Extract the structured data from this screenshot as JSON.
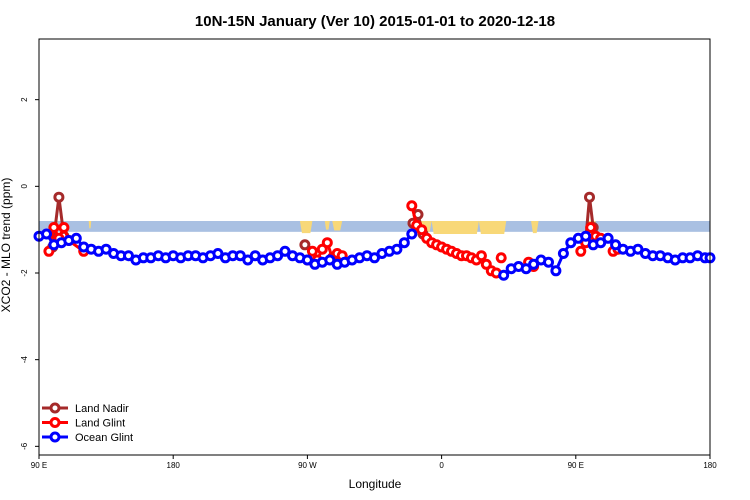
{
  "chart_data": {
    "type": "line",
    "title": "10N-15N January (Ver 10)   2015-01-01 to 2020-12-18",
    "xlabel": "Longitude",
    "ylabel": "XCO2 - MLO trend (ppm)",
    "xlim": [
      -90,
      180
    ],
    "ylim": [
      -6.2,
      3.4
    ],
    "x_ticks": [
      {
        "value": -90,
        "label": "90 E"
      },
      {
        "value": -36,
        "label": "180"
      },
      {
        "value": 18,
        "label": "90 W"
      },
      {
        "value": 72,
        "label": "0"
      },
      {
        "value": 126,
        "label": "90 E"
      },
      {
        "value": 180,
        "label": "180"
      }
    ],
    "y_ticks": [
      {
        "value": 2,
        "label": "2"
      },
      {
        "value": 0,
        "label": "0"
      },
      {
        "value": -2,
        "label": "-2"
      },
      {
        "value": -4,
        "label": "-4"
      },
      {
        "value": -6,
        "label": "-6"
      }
    ],
    "band": {
      "y_top": -0.8,
      "y_bottom": -1.05,
      "color": "#a9c0e2"
    },
    "land_patches": {
      "color": "#f8d878",
      "regions": [
        {
          "x0": -84,
          "x1": -82.5,
          "y_low": -1.05
        },
        {
          "x0": -70,
          "x1": -69,
          "y_low": -0.97
        },
        {
          "x0": 15,
          "x1": 20,
          "y_low": -1.08
        },
        {
          "x0": 25,
          "x1": 27,
          "y_low": -1.0
        },
        {
          "x0": 28,
          "x1": 32,
          "y_low": -1.02
        },
        {
          "x0": 62,
          "x1": 68,
          "y_low": -1.05
        },
        {
          "x0": 68,
          "x1": 87,
          "y_low": -1.1
        },
        {
          "x0": 87,
          "x1": 98,
          "y_low": -1.1
        },
        {
          "x0": 108,
          "x1": 111,
          "y_low": -1.08
        },
        {
          "x0": 131,
          "x1": 134,
          "y_low": -1.0
        }
      ]
    },
    "legend": {
      "position": "bottom-left",
      "entries": [
        {
          "label": "Land Nadir",
          "color": "#a52a2a"
        },
        {
          "label": "Land Glint",
          "color": "#ff0000"
        },
        {
          "label": "Ocean Glint",
          "color": "#0000ff"
        }
      ]
    },
    "series": [
      {
        "name": "Land Nadir",
        "color": "#a52a2a",
        "segments": [
          {
            "x": [
              -84.5,
              -82,
              -80
            ],
            "y": [
              -1.4,
              -0.25,
              -1.15
            ]
          },
          {
            "x": [
              17
            ],
            "y": [
              -1.35
            ]
          },
          {
            "x": [
              60.5,
              62.5,
              64.5
            ],
            "y": [
              -0.85,
              -0.65,
              -1.1
            ]
          },
          {
            "x": [
              130,
              131.5,
              133
            ],
            "y": [
              -1.25,
              -0.25,
              -0.95
            ]
          }
        ]
      },
      {
        "name": "Land Glint",
        "color": "#ff0000",
        "segments": [
          {
            "x": [
              -86,
              -84,
              -82,
              -80,
              -78,
              -72
            ],
            "y": [
              -1.5,
              -0.95,
              -1.2,
              -0.95,
              -1.25,
              -1.5
            ]
          },
          {
            "x": [
              18,
              20,
              22,
              24,
              26,
              28,
              30,
              32
            ],
            "y": [
              -1.7,
              -1.5,
              -1.7,
              -1.45,
              -1.3,
              -1.65,
              -1.55,
              -1.6
            ]
          },
          {
            "x": [
              60,
              62,
              64,
              66,
              68,
              70,
              72,
              74,
              76,
              78,
              80,
              82,
              84,
              86,
              88,
              90,
              92,
              94
            ],
            "y": [
              -0.45,
              -0.9,
              -1.0,
              -1.2,
              -1.3,
              -1.35,
              -1.4,
              -1.45,
              -1.5,
              -1.55,
              -1.6,
              -1.6,
              -1.65,
              -1.7,
              -1.6,
              -1.8,
              -1.95,
              -2.0
            ]
          },
          {
            "x": [
              96
            ],
            "y": [
              -1.65
            ]
          },
          {
            "x": [
              107,
              109
            ],
            "y": [
              -1.75,
              -1.85
            ]
          },
          {
            "x": [
              128,
              130,
              132,
              134,
              136
            ],
            "y": [
              -1.5,
              -1.3,
              -0.95,
              -1.15,
              -1.2
            ]
          },
          {
            "x": [
              141,
              143
            ],
            "y": [
              -1.5,
              -1.45
            ]
          }
        ]
      },
      {
        "name": "Ocean Glint",
        "color": "#0000ff",
        "segments": [
          {
            "x": [
              -90,
              -87,
              -84,
              -81,
              -78,
              -75,
              -72,
              -69,
              -66,
              -63,
              -60,
              -57,
              -54,
              -51,
              -48,
              -45,
              -42,
              -39,
              -36,
              -33,
              -30,
              -27,
              -24,
              -21,
              -18,
              -15,
              -12,
              -9,
              -6,
              -3,
              0,
              3,
              6,
              9,
              12,
              15,
              18,
              21,
              24,
              27,
              30,
              33,
              36,
              39,
              42,
              45,
              48,
              51,
              54,
              57,
              60
            ],
            "y": [
              -1.15,
              -1.1,
              -1.35,
              -1.3,
              -1.25,
              -1.2,
              -1.4,
              -1.45,
              -1.5,
              -1.45,
              -1.55,
              -1.6,
              -1.6,
              -1.7,
              -1.65,
              -1.65,
              -1.6,
              -1.65,
              -1.6,
              -1.65,
              -1.6,
              -1.6,
              -1.65,
              -1.6,
              -1.55,
              -1.65,
              -1.6,
              -1.6,
              -1.7,
              -1.6,
              -1.7,
              -1.65,
              -1.6,
              -1.5,
              -1.6,
              -1.65,
              -1.7,
              -1.8,
              -1.75,
              -1.7,
              -1.8,
              -1.75,
              -1.7,
              -1.65,
              -1.6,
              -1.65,
              -1.55,
              -1.5,
              -1.45,
              -1.3,
              -1.1
            ]
          },
          {
            "x": [
              97,
              100,
              103,
              106,
              109,
              112,
              115,
              118,
              121,
              124,
              127,
              130,
              133,
              136,
              139,
              142,
              145,
              148,
              151,
              154,
              157,
              160,
              163,
              166,
              169,
              172,
              175,
              178,
              180
            ],
            "y": [
              -2.05,
              -1.9,
              -1.85,
              -1.9,
              -1.8,
              -1.7,
              -1.75,
              -1.95,
              -1.55,
              -1.3,
              -1.2,
              -1.15,
              -1.35,
              -1.3,
              -1.2,
              -1.35,
              -1.45,
              -1.5,
              -1.45,
              -1.55,
              -1.6,
              -1.6,
              -1.65,
              -1.7,
              -1.65,
              -1.65,
              -1.6,
              -1.65,
              -1.65
            ]
          }
        ]
      }
    ]
  }
}
